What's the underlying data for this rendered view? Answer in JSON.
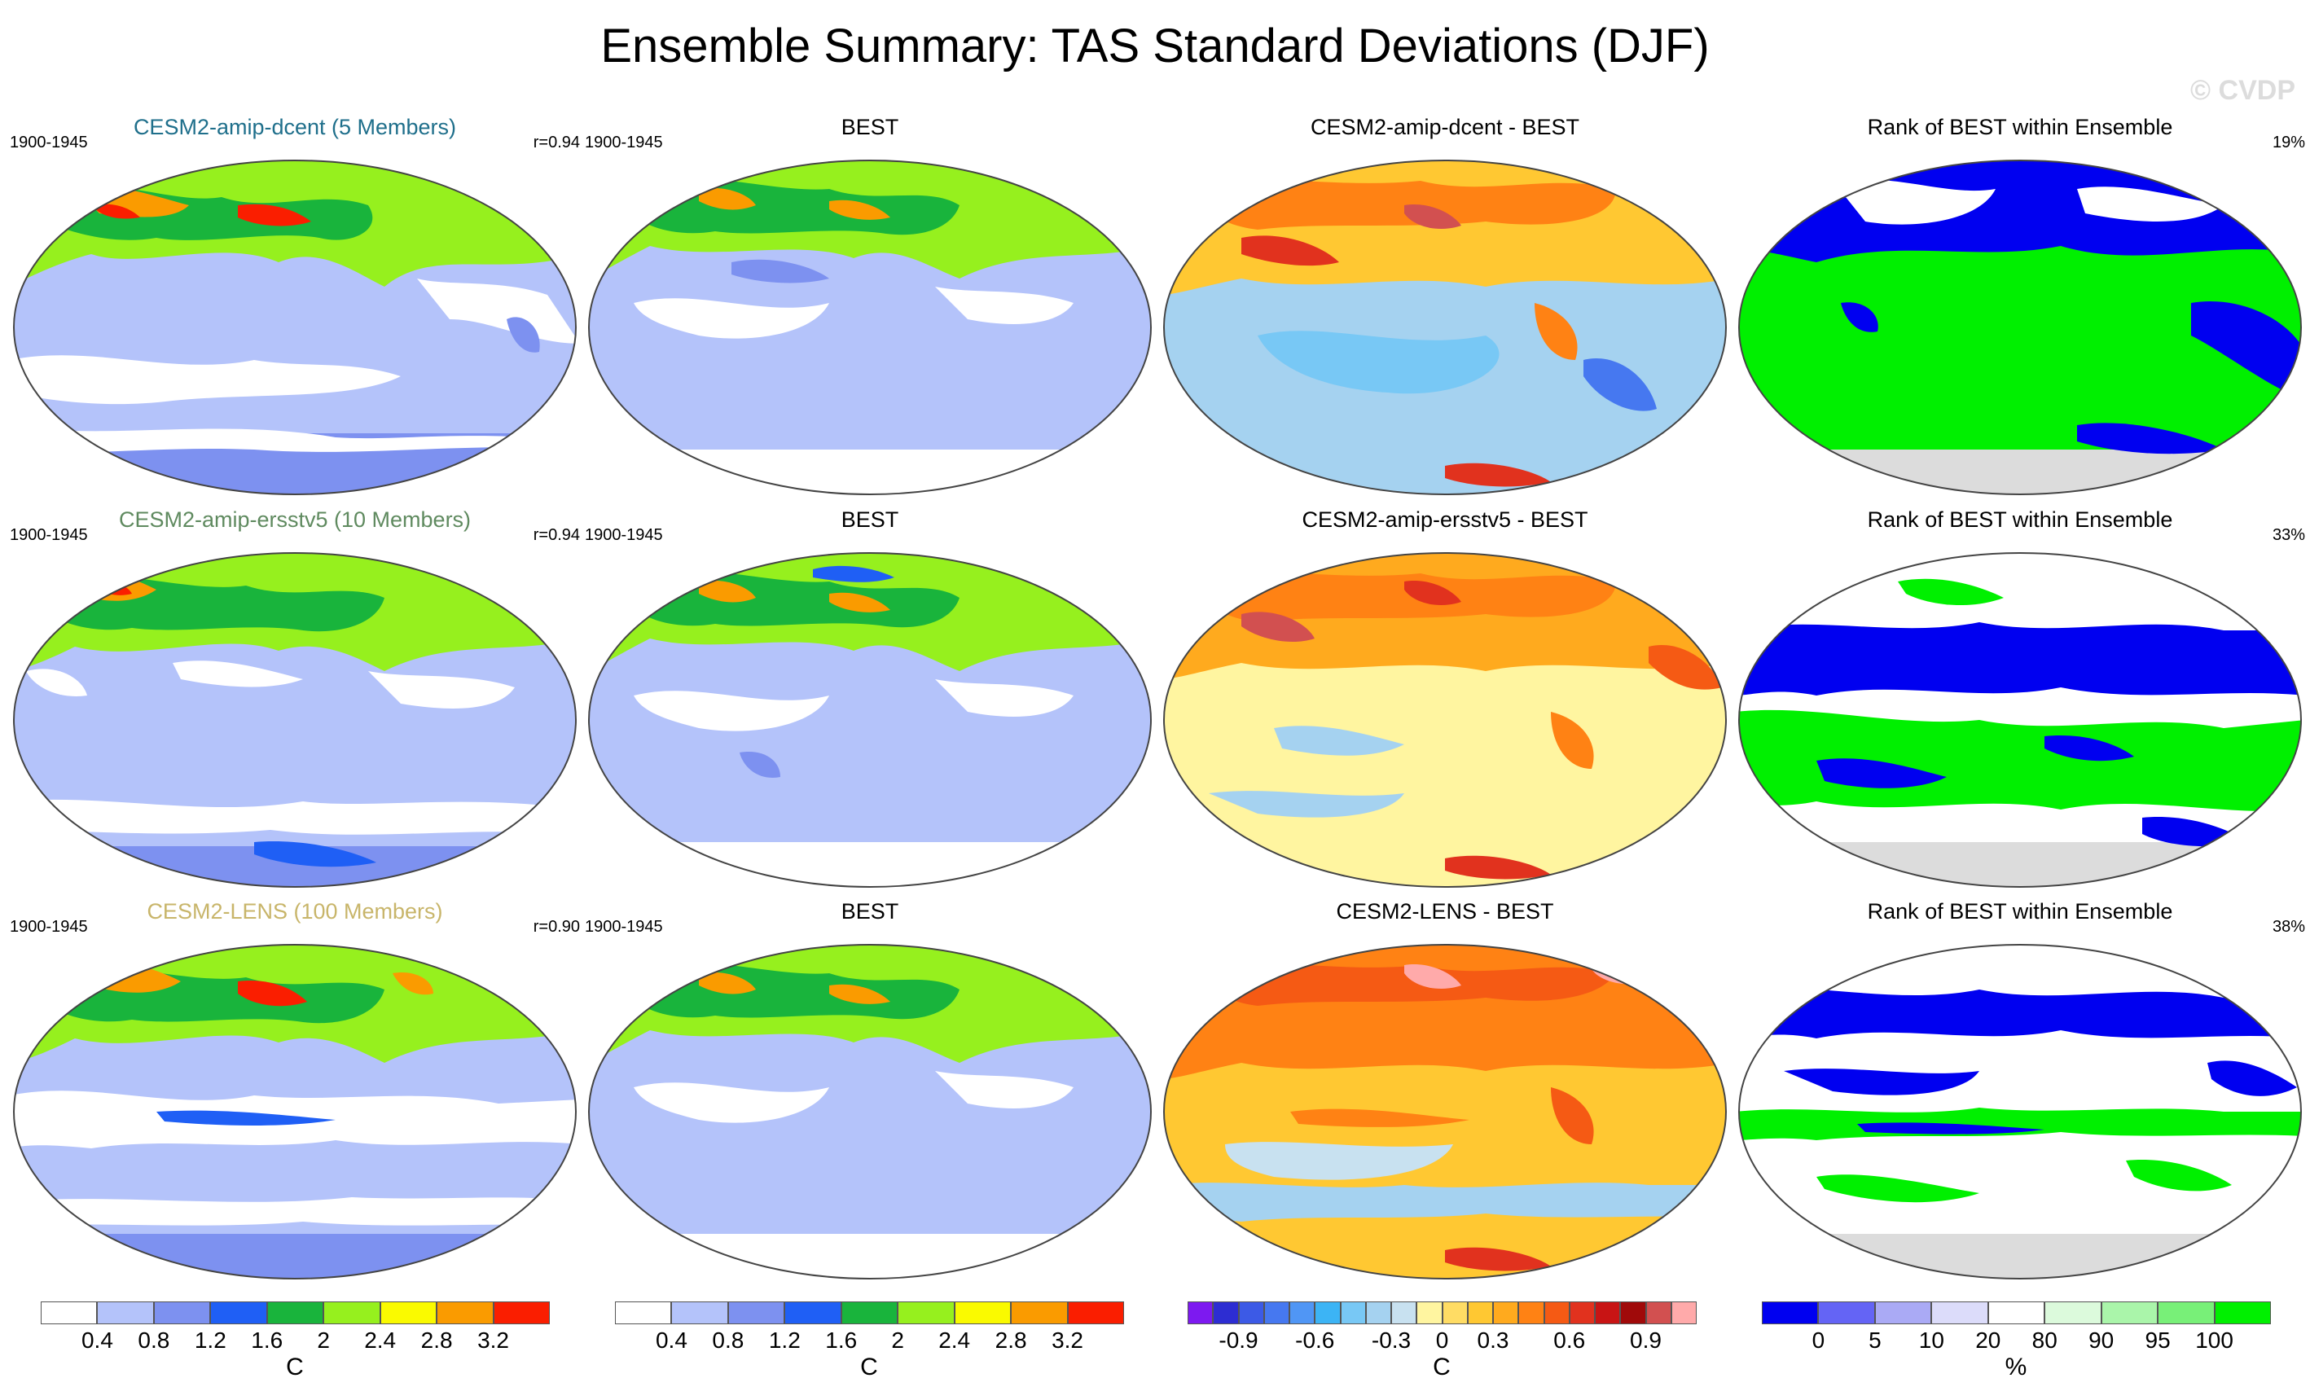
{
  "figure_title": "Ensemble Summary: TAS Standard Deviations (DJF)",
  "watermark": "© CVDP",
  "colors": {
    "title_row1": "#1f6f8b",
    "title_row2": "#5f8a5f",
    "title_row3": "#c8b56a"
  },
  "rows": [
    {
      "ensemble_title": "CESM2-amip-dcent (5 Members)",
      "period": "1900-1945",
      "correlation": "r=0.94",
      "obs_title": "BEST",
      "obs_period": "1900-1945",
      "diff_title": "CESM2-amip-dcent - BEST",
      "rank_title": "Rank of BEST within Ensemble",
      "rank_pct": "19%"
    },
    {
      "ensemble_title": "CESM2-amip-ersstv5 (10 Members)",
      "period": "1900-1945",
      "correlation": "r=0.94",
      "obs_title": "BEST",
      "obs_period": "1900-1945",
      "diff_title": "CESM2-amip-ersstv5 - BEST",
      "rank_title": "Rank of BEST within Ensemble",
      "rank_pct": "33%"
    },
    {
      "ensemble_title": "CESM2-LENS (100 Members)",
      "period": "1900-1945",
      "correlation": "r=0.90",
      "obs_title": "BEST",
      "obs_period": "1900-1945",
      "diff_title": "CESM2-LENS - BEST",
      "rank_title": "Rank of BEST within Ensemble",
      "rank_pct": "38%"
    }
  ],
  "legends": {
    "stddev": {
      "unit": "C",
      "ticks": [
        "0.4",
        "0.8",
        "1.2",
        "1.6",
        "2",
        "2.4",
        "2.8",
        "3.2"
      ],
      "colors": [
        "#ffffff",
        "#b4c3fa",
        "#7d91f0",
        "#1f5ff5",
        "#19b43c",
        "#96f01e",
        "#fafa00",
        "#fa9b00",
        "#fa1e00"
      ]
    },
    "diff": {
      "unit": "C",
      "ticks": [
        "-0.9",
        "-0.6",
        "-0.3",
        "0",
        "0.3",
        "0.6",
        "0.9"
      ],
      "colors": [
        "#7d19f0",
        "#2d2dd2",
        "#3c5ae6",
        "#4678f0",
        "#5096f5",
        "#3cb4f5",
        "#78c8f5",
        "#a5d2f0",
        "#c8e1f0",
        "#fff5a0",
        "#ffdc64",
        "#ffc832",
        "#ffaa1e",
        "#ff8214",
        "#f55a14",
        "#e1321e",
        "#c81414",
        "#a00a0a",
        "#d25050",
        "#ffaaaa"
      ]
    },
    "rank": {
      "unit": "%",
      "ticks": [
        "0",
        "5",
        "10",
        "20",
        "80",
        "90",
        "95",
        "100"
      ],
      "colors": [
        "#0000f0",
        "#6464f5",
        "#aaaaf5",
        "#dcdcfa",
        "#ffffff",
        "#dcfadc",
        "#aaf5aa",
        "#78f078",
        "#00f000"
      ]
    }
  }
}
